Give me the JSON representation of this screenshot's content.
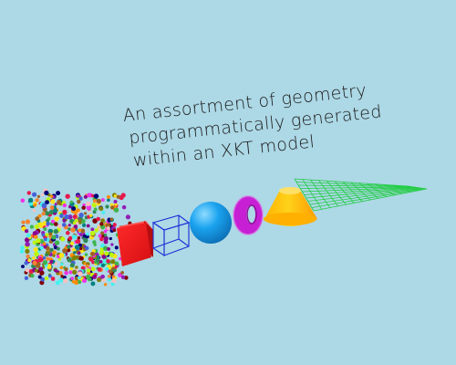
{
  "scene": {
    "caption_lines": [
      "An assortment of geometry",
      "programmatically generated",
      "within an XKT model"
    ],
    "objects": [
      {
        "name": "point-cloud",
        "kind": "points"
      },
      {
        "name": "red-box",
        "kind": "solid box"
      },
      {
        "name": "wireframe-box",
        "kind": "line box"
      },
      {
        "name": "sphere",
        "kind": "sphere"
      },
      {
        "name": "torus",
        "kind": "torus"
      },
      {
        "name": "cylinder",
        "kind": "truncated cone"
      },
      {
        "name": "grid-plane",
        "kind": "grid"
      }
    ],
    "colors": {
      "background": "#add8e6",
      "text": "#1a1a1a",
      "box": "#e8151a",
      "wireframe": "#1a2fd8",
      "sphere": "#1ba3ef",
      "torus": "#c71fd4",
      "cylinder": "#f5c400",
      "grid": "#22cc44"
    },
    "point_palette": [
      "#e6194b",
      "#3cb44b",
      "#ffe119",
      "#4363d8",
      "#f58231",
      "#911eb4",
      "#46f0f0",
      "#f032e6",
      "#bcf60c",
      "#fabebe",
      "#008080",
      "#9a6324",
      "#800000",
      "#808000",
      "#000075",
      "#ff8c00",
      "#2e8b57",
      "#8b008b"
    ]
  }
}
